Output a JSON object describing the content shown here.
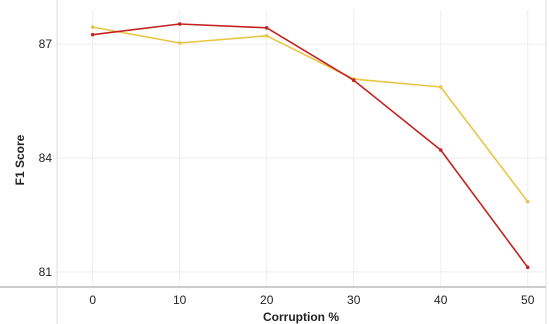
{
  "chart_data": {
    "type": "line",
    "title": "",
    "xlabel": "Corruption %",
    "ylabel": "F1 Score",
    "x": [
      0,
      10,
      20,
      30,
      40,
      50
    ],
    "xticks": [
      "0",
      "10",
      "20",
      "30",
      "40",
      "50"
    ],
    "yticks": [
      "81",
      "84",
      "87"
    ],
    "xlim": [
      -4.1,
      52.1
    ],
    "ylim": [
      80.6,
      87.9
    ],
    "grid": true,
    "legend": "none",
    "series": [
      {
        "color": "#e8c547",
        "values": [
          87.45,
          87.03,
          87.22,
          86.08,
          85.87,
          82.85
        ]
      },
      {
        "color": "#c4221f",
        "values": [
          87.25,
          87.53,
          87.43,
          86.05,
          84.21,
          81.12
        ]
      }
    ]
  },
  "colors": {
    "grid": "#eeeeee",
    "axis": "#999999",
    "frame": "#dddddd"
  }
}
